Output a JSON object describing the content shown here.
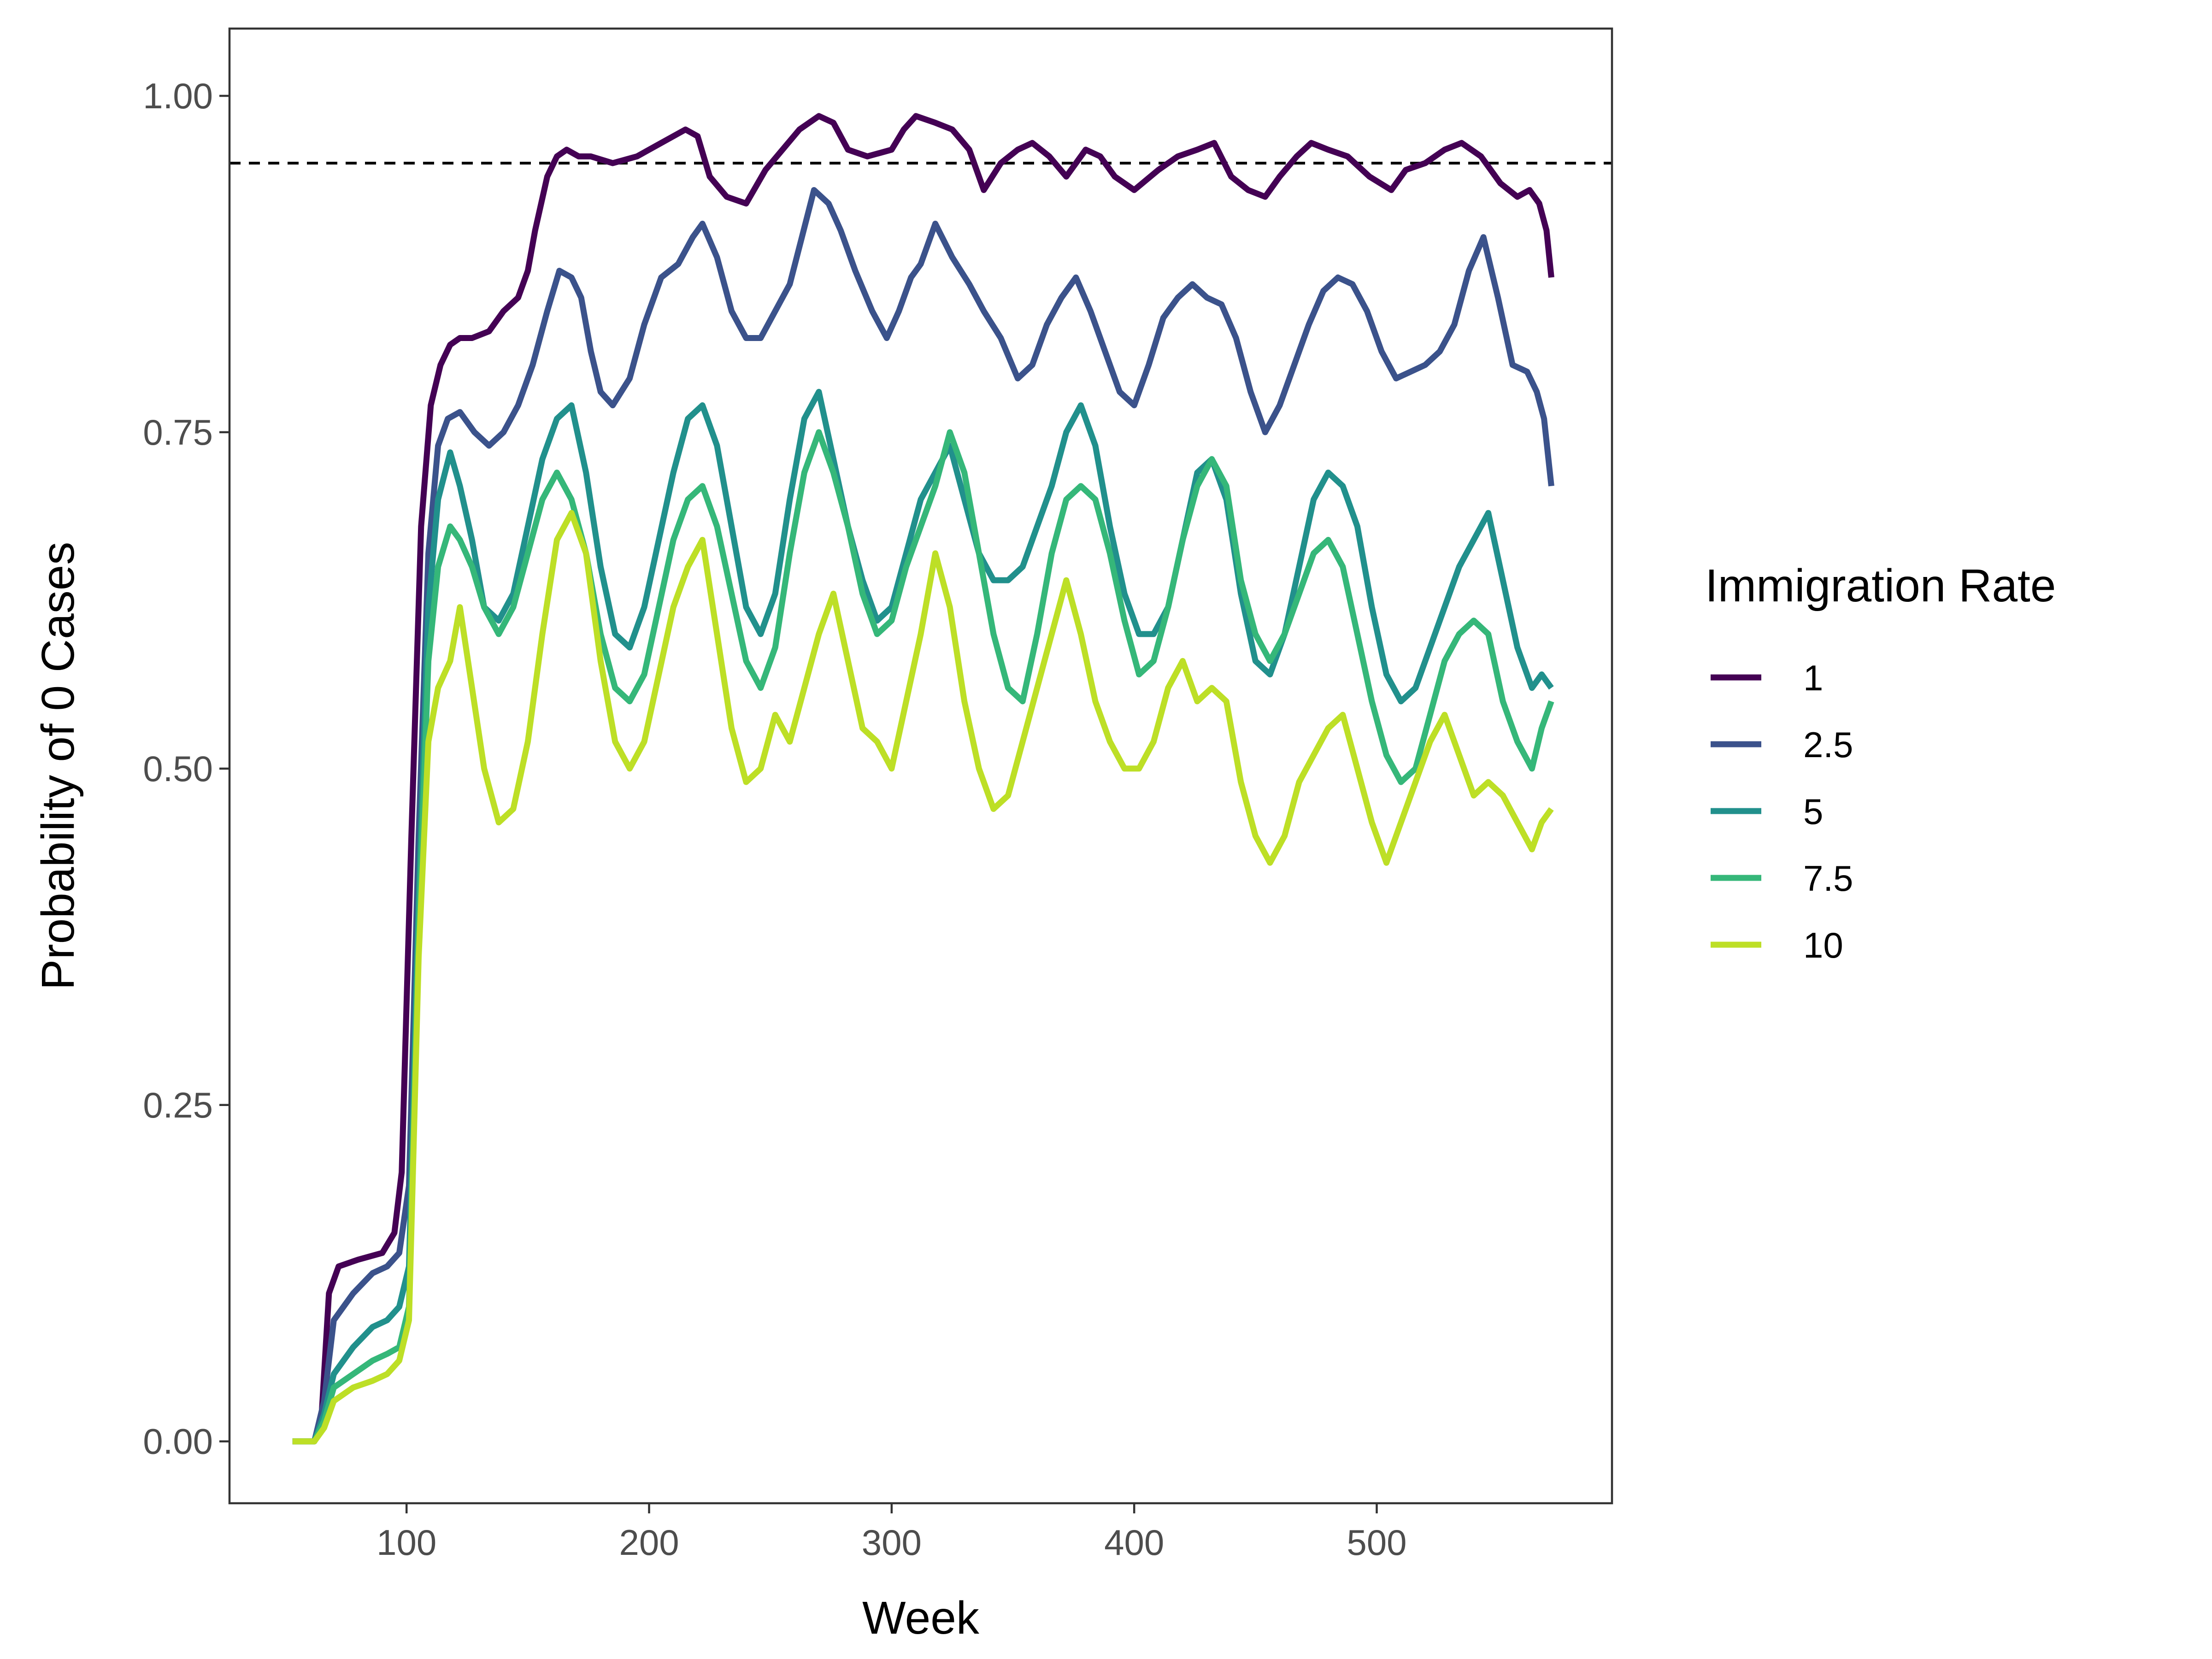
{
  "chart_data": {
    "type": "line",
    "xlabel": "Week",
    "ylabel": "Probability of 0 Cases",
    "xlim": [
      27,
      597
    ],
    "ylim": [
      -0.046,
      1.05
    ],
    "x_ticks": [
      100,
      200,
      300,
      400,
      500
    ],
    "x_tick_labels": [
      "100",
      "200",
      "300",
      "400",
      "500"
    ],
    "y_ticks": [
      0,
      0.25,
      0.5,
      0.75,
      1.0
    ],
    "y_tick_labels": [
      "0.00",
      "0.25",
      "0.50",
      "0.75",
      "1.00"
    ],
    "grid": false,
    "legend": {
      "title": "Immigration Rate",
      "position": "right"
    },
    "reference_line": {
      "y": 0.95,
      "style": "dashed",
      "color": "#000000"
    },
    "series": [
      {
        "name": "1",
        "color": "#440154",
        "x": [
          53,
          62,
          65,
          68,
          72,
          80,
          90,
          95,
          98,
          102,
          106,
          110,
          114,
          118,
          122,
          127,
          134,
          140,
          146,
          150,
          153,
          158,
          162,
          166,
          171,
          176,
          185,
          195,
          205,
          215,
          220,
          225,
          232,
          240,
          248,
          255,
          262,
          270,
          276,
          282,
          290,
          300,
          305,
          310,
          318,
          325,
          332,
          338,
          345,
          352,
          358,
          365,
          372,
          380,
          386,
          392,
          400,
          410,
          418,
          426,
          433,
          440,
          447,
          454,
          460,
          467,
          473,
          480,
          488,
          497,
          506,
          512,
          520,
          528,
          535,
          543,
          551,
          558,
          563,
          567,
          570,
          572
        ],
        "y": [
          0,
          0,
          0.02,
          0.11,
          0.13,
          0.135,
          0.14,
          0.155,
          0.2,
          0.45,
          0.68,
          0.77,
          0.8,
          0.815,
          0.82,
          0.82,
          0.825,
          0.84,
          0.85,
          0.87,
          0.9,
          0.94,
          0.955,
          0.96,
          0.955,
          0.955,
          0.95,
          0.955,
          0.965,
          0.975,
          0.97,
          0.94,
          0.925,
          0.92,
          0.945,
          0.96,
          0.975,
          0.985,
          0.98,
          0.96,
          0.955,
          0.96,
          0.975,
          0.985,
          0.98,
          0.975,
          0.96,
          0.93,
          0.95,
          0.96,
          0.965,
          0.955,
          0.94,
          0.96,
          0.955,
          0.94,
          0.93,
          0.945,
          0.955,
          0.96,
          0.965,
          0.94,
          0.93,
          0.925,
          0.94,
          0.955,
          0.965,
          0.96,
          0.955,
          0.94,
          0.93,
          0.945,
          0.95,
          0.96,
          0.965,
          0.955,
          0.935,
          0.925,
          0.93,
          0.92,
          0.9,
          0.865
        ]
      },
      {
        "name": "2.5",
        "color": "#3b528b",
        "x": [
          53,
          62,
          66,
          70,
          78,
          86,
          92,
          97,
          101,
          105,
          109,
          113,
          117,
          122,
          128,
          134,
          140,
          146,
          152,
          158,
          163,
          168,
          172,
          176,
          180,
          185,
          192,
          198,
          205,
          212,
          218,
          222,
          228,
          234,
          240,
          246,
          252,
          258,
          263,
          268,
          274,
          279,
          285,
          292,
          298,
          303,
          308,
          312,
          318,
          325,
          332,
          338,
          345,
          352,
          358,
          364,
          370,
          376,
          382,
          388,
          394,
          400,
          406,
          412,
          418,
          424,
          430,
          436,
          442,
          448,
          454,
          460,
          466,
          472,
          478,
          484,
          490,
          496,
          502,
          508,
          514,
          520,
          526,
          532,
          538,
          544,
          550,
          556,
          562,
          566,
          569,
          572
        ],
        "y": [
          0,
          0,
          0.03,
          0.09,
          0.11,
          0.125,
          0.13,
          0.14,
          0.19,
          0.45,
          0.66,
          0.74,
          0.76,
          0.765,
          0.75,
          0.74,
          0.75,
          0.77,
          0.8,
          0.84,
          0.87,
          0.865,
          0.85,
          0.81,
          0.78,
          0.77,
          0.79,
          0.83,
          0.865,
          0.875,
          0.895,
          0.905,
          0.88,
          0.84,
          0.82,
          0.82,
          0.84,
          0.86,
          0.895,
          0.93,
          0.92,
          0.9,
          0.87,
          0.84,
          0.82,
          0.84,
          0.865,
          0.875,
          0.905,
          0.88,
          0.86,
          0.84,
          0.82,
          0.79,
          0.8,
          0.83,
          0.85,
          0.865,
          0.84,
          0.81,
          0.78,
          0.77,
          0.8,
          0.835,
          0.85,
          0.86,
          0.85,
          0.845,
          0.82,
          0.78,
          0.75,
          0.77,
          0.8,
          0.83,
          0.855,
          0.865,
          0.86,
          0.84,
          0.81,
          0.79,
          0.795,
          0.8,
          0.81,
          0.83,
          0.87,
          0.895,
          0.85,
          0.8,
          0.795,
          0.78,
          0.76,
          0.71
        ]
      },
      {
        "name": "5",
        "color": "#21908c",
        "x": [
          53,
          62,
          66,
          70,
          78,
          86,
          92,
          97,
          101,
          105,
          109,
          113,
          118,
          122,
          127,
          132,
          138,
          144,
          150,
          156,
          162,
          168,
          174,
          180,
          186,
          192,
          198,
          204,
          210,
          216,
          222,
          228,
          234,
          240,
          246,
          252,
          258,
          264,
          270,
          276,
          282,
          288,
          294,
          300,
          306,
          312,
          318,
          324,
          330,
          336,
          342,
          348,
          354,
          360,
          366,
          372,
          378,
          384,
          390,
          396,
          402,
          408,
          414,
          420,
          426,
          432,
          438,
          444,
          450,
          456,
          462,
          468,
          474,
          480,
          486,
          492,
          498,
          504,
          510,
          516,
          522,
          528,
          534,
          540,
          546,
          552,
          558,
          564,
          568,
          572
        ],
        "y": [
          0,
          0,
          0.02,
          0.05,
          0.07,
          0.085,
          0.09,
          0.1,
          0.13,
          0.4,
          0.62,
          0.7,
          0.735,
          0.71,
          0.67,
          0.62,
          0.61,
          0.63,
          0.68,
          0.73,
          0.76,
          0.77,
          0.72,
          0.65,
          0.6,
          0.59,
          0.62,
          0.67,
          0.72,
          0.76,
          0.77,
          0.74,
          0.68,
          0.62,
          0.6,
          0.63,
          0.7,
          0.76,
          0.78,
          0.73,
          0.68,
          0.64,
          0.61,
          0.62,
          0.66,
          0.7,
          0.72,
          0.74,
          0.7,
          0.66,
          0.64,
          0.64,
          0.65,
          0.68,
          0.71,
          0.75,
          0.77,
          0.74,
          0.68,
          0.63,
          0.6,
          0.6,
          0.62,
          0.67,
          0.72,
          0.73,
          0.7,
          0.63,
          0.58,
          0.57,
          0.6,
          0.65,
          0.7,
          0.72,
          0.71,
          0.68,
          0.62,
          0.57,
          0.55,
          0.56,
          0.59,
          0.62,
          0.65,
          0.67,
          0.69,
          0.64,
          0.59,
          0.56,
          0.57,
          0.56
        ]
      },
      {
        "name": "7.5",
        "color": "#35b779",
        "x": [
          53,
          62,
          66,
          70,
          78,
          86,
          92,
          97,
          101,
          105,
          109,
          113,
          118,
          122,
          127,
          132,
          138,
          144,
          150,
          156,
          162,
          168,
          174,
          180,
          186,
          192,
          198,
          204,
          210,
          216,
          222,
          228,
          234,
          240,
          246,
          252,
          258,
          264,
          270,
          276,
          282,
          288,
          294,
          300,
          306,
          312,
          318,
          324,
          330,
          336,
          342,
          348,
          354,
          360,
          366,
          372,
          378,
          384,
          390,
          396,
          402,
          408,
          414,
          420,
          426,
          432,
          438,
          444,
          450,
          456,
          462,
          468,
          474,
          480,
          486,
          492,
          498,
          504,
          510,
          516,
          522,
          528,
          534,
          540,
          546,
          552,
          558,
          564,
          568,
          572
        ],
        "y": [
          0,
          0,
          0.015,
          0.04,
          0.05,
          0.06,
          0.065,
          0.07,
          0.1,
          0.38,
          0.58,
          0.65,
          0.68,
          0.67,
          0.65,
          0.62,
          0.6,
          0.62,
          0.66,
          0.7,
          0.72,
          0.7,
          0.66,
          0.6,
          0.56,
          0.55,
          0.57,
          0.62,
          0.67,
          0.7,
          0.71,
          0.68,
          0.63,
          0.58,
          0.56,
          0.59,
          0.66,
          0.72,
          0.75,
          0.72,
          0.68,
          0.63,
          0.6,
          0.61,
          0.65,
          0.68,
          0.71,
          0.75,
          0.72,
          0.66,
          0.6,
          0.56,
          0.55,
          0.6,
          0.66,
          0.7,
          0.71,
          0.7,
          0.66,
          0.61,
          0.57,
          0.58,
          0.62,
          0.67,
          0.71,
          0.73,
          0.71,
          0.64,
          0.6,
          0.58,
          0.6,
          0.63,
          0.66,
          0.67,
          0.65,
          0.6,
          0.55,
          0.51,
          0.49,
          0.5,
          0.54,
          0.58,
          0.6,
          0.61,
          0.6,
          0.55,
          0.52,
          0.5,
          0.53,
          0.55
        ]
      },
      {
        "name": "10",
        "color": "#bddf26",
        "x": [
          53,
          62,
          66,
          70,
          78,
          86,
          92,
          97,
          101,
          105,
          109,
          113,
          118,
          122,
          127,
          132,
          138,
          144,
          150,
          156,
          162,
          168,
          174,
          180,
          186,
          192,
          198,
          204,
          210,
          216,
          222,
          228,
          234,
          240,
          246,
          252,
          258,
          264,
          270,
          276,
          282,
          288,
          294,
          300,
          306,
          312,
          318,
          324,
          330,
          336,
          342,
          348,
          354,
          360,
          366,
          372,
          378,
          384,
          390,
          396,
          402,
          408,
          414,
          420,
          426,
          432,
          438,
          444,
          450,
          456,
          462,
          468,
          474,
          480,
          486,
          492,
          498,
          504,
          510,
          516,
          522,
          528,
          534,
          540,
          546,
          552,
          558,
          564,
          568,
          572
        ],
        "y": [
          0,
          0,
          0.01,
          0.03,
          0.04,
          0.045,
          0.05,
          0.06,
          0.09,
          0.36,
          0.52,
          0.56,
          0.58,
          0.62,
          0.56,
          0.5,
          0.46,
          0.47,
          0.52,
          0.6,
          0.67,
          0.69,
          0.66,
          0.58,
          0.52,
          0.5,
          0.52,
          0.57,
          0.62,
          0.65,
          0.67,
          0.6,
          0.53,
          0.49,
          0.5,
          0.54,
          0.52,
          0.56,
          0.6,
          0.63,
          0.58,
          0.53,
          0.52,
          0.5,
          0.55,
          0.6,
          0.66,
          0.62,
          0.55,
          0.5,
          0.47,
          0.48,
          0.52,
          0.56,
          0.6,
          0.64,
          0.6,
          0.55,
          0.52,
          0.5,
          0.5,
          0.52,
          0.56,
          0.58,
          0.55,
          0.56,
          0.55,
          0.49,
          0.45,
          0.43,
          0.45,
          0.49,
          0.51,
          0.53,
          0.54,
          0.5,
          0.46,
          0.43,
          0.46,
          0.49,
          0.52,
          0.54,
          0.51,
          0.48,
          0.49,
          0.48,
          0.46,
          0.44,
          0.46,
          0.47
        ]
      }
    ]
  }
}
